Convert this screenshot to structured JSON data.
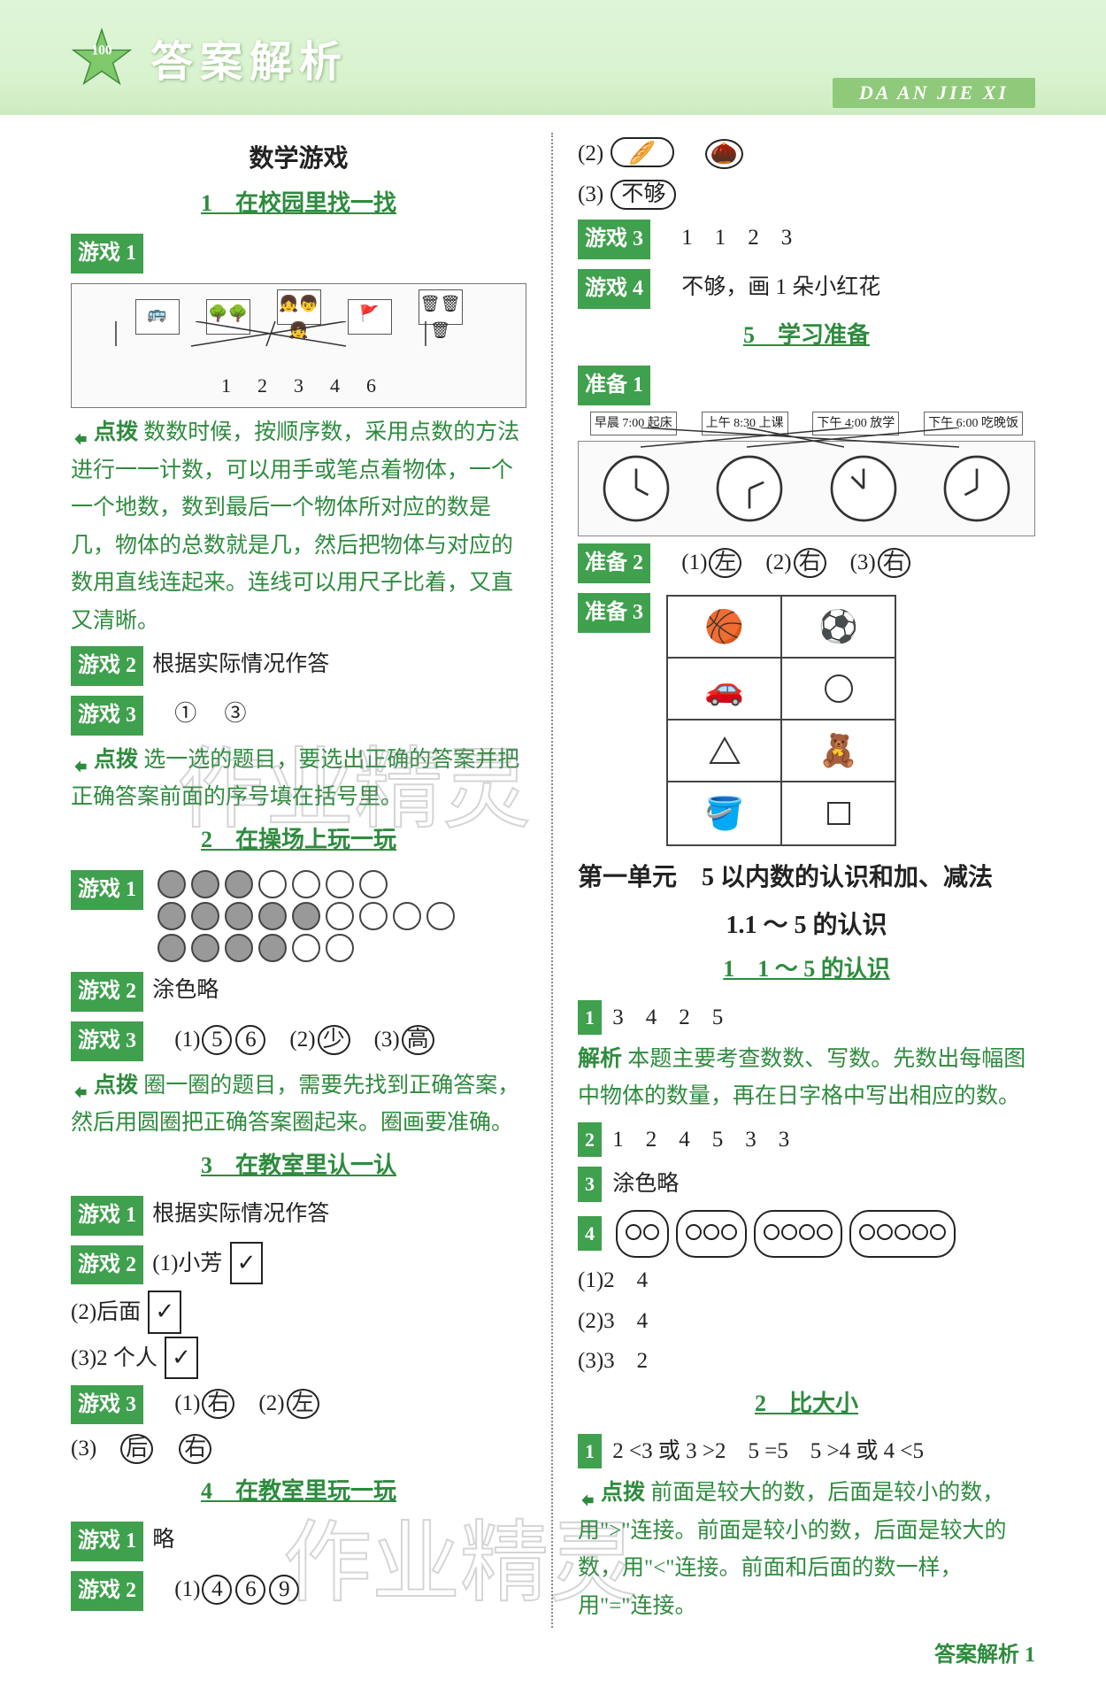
{
  "header": {
    "title": "答案解析",
    "subtitle": "DA AN JIE XI"
  },
  "watermarks": {
    "wm1": "作业精灵",
    "wm2": "作业精灵"
  },
  "left": {
    "section_title": "数学游戏",
    "s1": {
      "title": "1　在校园里找一找",
      "game1_tag": "游戏 1",
      "game1_numbers": [
        "1",
        "2",
        "3",
        "4",
        "6"
      ],
      "hint_label": "点拨",
      "hint_text": "数数时候，按顺序数，采用点数的方法进行一一计数，可以用手或笔点着物体，一个一个地数，数到最后一个物体所对应的数是几，物体的总数就是几，然后把物体与对应的数用直线连起来。连线可以用尺子比着，又直又清晰。",
      "game2_tag": "游戏 2",
      "game2_text": "根据实际情况作答",
      "game3_tag": "游戏 3",
      "game3_answers": [
        "①",
        "③"
      ],
      "hint2_label": "点拨",
      "hint2_text": "选一选的题目，要选出正确的答案并把正确答案前面的序号填在括号里。"
    },
    "s2": {
      "title": "2　在操场上玩一玩",
      "game1_tag": "游戏 1",
      "game1_dots": [
        [
          true,
          true,
          true,
          false,
          false,
          false,
          false
        ],
        [
          true,
          true,
          true,
          true,
          true,
          false,
          false,
          false,
          false
        ],
        [
          true,
          true,
          true,
          true,
          false,
          false
        ]
      ],
      "game2_tag": "游戏 2",
      "game2_text": "涂色略",
      "game3_tag": "游戏 3",
      "game3_parts": [
        {
          "prefix": "(1)",
          "circled": [
            "5",
            "6"
          ]
        },
        {
          "prefix": "(2)",
          "circled": [
            "少"
          ]
        },
        {
          "prefix": "(3)",
          "circled": [
            "高"
          ]
        }
      ],
      "hint_label": "点拨",
      "hint_text": "圈一圈的题目，需要先找到正确答案，然后用圆圈把正确答案圈起来。圈画要准确。"
    },
    "s3": {
      "title": "3　在教室里认一认",
      "game1_tag": "游戏 1",
      "game1_text": "根据实际情况作答",
      "game2_tag": "游戏 2",
      "game2_lines": [
        "(1)小芳 ☑",
        "(2)后面 ☑",
        "(3)2 个人 ☑"
      ],
      "game3_tag": "游戏 3",
      "game3_parts": [
        {
          "prefix": "(1)",
          "circled": [
            "右"
          ]
        },
        {
          "prefix": "(2)",
          "circled": [
            "左"
          ]
        }
      ],
      "game3_line2": {
        "prefix": "(3)",
        "circled": [
          "后",
          "右"
        ]
      }
    },
    "s4": {
      "title": "4　在教室里玩一玩",
      "game1_tag": "游戏 1",
      "game1_text": "略",
      "game2_tag": "游戏 2",
      "game2_parts": {
        "prefix": "(1)",
        "circled": [
          "4",
          "6",
          "9"
        ]
      }
    }
  },
  "right": {
    "top": {
      "line2": "(2)",
      "line3_prefix": "(3)",
      "line3_circled": "不够",
      "game3_tag": "游戏 3",
      "game3_answers": "1　1　2　3",
      "game4_tag": "游戏 4",
      "game4_text": "不够，画 1 朵小红花"
    },
    "s5": {
      "title": "5　学习准备",
      "prep1_tag": "准备 1",
      "clock_labels": [
        "早晨 7:00 起床",
        "上午 8:30 上课",
        "下午 4:00 放学",
        "下午 6:00 吃晚饭"
      ],
      "prep2_tag": "准备 2",
      "prep2_parts": [
        {
          "prefix": "(1)",
          "circled": "左"
        },
        {
          "prefix": "(2)",
          "circled": "右"
        },
        {
          "prefix": "(3)",
          "circled": "右"
        }
      ],
      "prep3_tag": "准备 3"
    },
    "unit1": {
      "title": "第一单元　5 以内数的认识和加、减法",
      "subtitle1": "1.1 ～ 5 的认识",
      "subtitle2": "1　1 ～ 5 的认识",
      "q1_tag": "1",
      "q1_text": "3　4　2　5",
      "analysis_label": "解析",
      "analysis_text": "本题主要考查数数、写数。先数出每幅图中物体的数量，再在日字格中写出相应的数。",
      "q2_tag": "2",
      "q2_text": "1　2　4　5　3　3",
      "q3_tag": "3",
      "q3_text": "涂色略",
      "q4_tag": "4",
      "q4_ovals": [
        2,
        3,
        4,
        5
      ],
      "q4_lines": [
        "(1)2　4",
        "(2)3　4",
        "(3)3　2"
      ]
    },
    "unit2": {
      "title": "2　比大小",
      "q1_tag": "1",
      "q1_text": "2 <3 或 3 >2　5 =5　5 >4 或 4 <5",
      "hint_label": "点拨",
      "hint_text": "前面是较大的数，后面是较小的数，用\">\"连接。前面是较小的数，后面是较大的数，用\"<\"连接。前面和后面的数一样，用\"=\"连接。"
    }
  },
  "footer": "答案解析 1"
}
